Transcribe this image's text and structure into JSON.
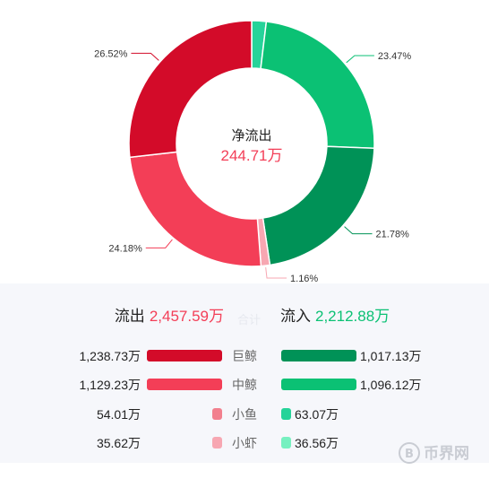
{
  "chart_data": {
    "type": "pie",
    "center_title": "净流出",
    "center_value": "244.71万",
    "slices": [
      {
        "label": "",
        "percent": 1.89,
        "color": "#26d399"
      },
      {
        "label": "23.47%",
        "percent": 23.47,
        "color": "#0bc174"
      },
      {
        "label": "21.78%",
        "percent": 21.78,
        "color": "#009257"
      },
      {
        "label": "1.16%",
        "percent": 1.16,
        "color": "#f7a7b2"
      },
      {
        "label": "24.18%",
        "percent": 24.18,
        "color": "#f33e57"
      },
      {
        "label": "26.52%",
        "percent": 26.52,
        "color": "#d30b29"
      }
    ]
  },
  "summary": {
    "outflow_label": "流出",
    "outflow_value": "2,457.59万",
    "inflow_label": "流入",
    "inflow_value": "2,212.88万",
    "middle_ghost": "合计"
  },
  "rows": [
    {
      "category": "巨鲸",
      "outflow": "1,238.73万",
      "inflow": "1,017.13万",
      "out_color": "#d30b29",
      "in_color": "#009257",
      "out_fraction": 1.0,
      "in_fraction": 1.0
    },
    {
      "category": "中鲸",
      "outflow": "1,129.23万",
      "inflow": "1,096.12万",
      "out_color": "#f33e57",
      "in_color": "#0bc174",
      "out_fraction": 1.0,
      "in_fraction": 1.0
    },
    {
      "category": "小鱼",
      "outflow": "54.01万",
      "inflow": "63.07万",
      "out_color": "#f2808e",
      "in_color": "#26d399",
      "out_fraction": 0.0,
      "in_fraction": 0.0
    },
    {
      "category": "小虾",
      "outflow": "35.62万",
      "inflow": "36.56万",
      "out_color": "#f7a7b2",
      "in_color": "#77f0c0",
      "out_fraction": 0.0,
      "in_fraction": 0.0
    }
  ],
  "watermark": {
    "text": "币界网"
  },
  "colors": {
    "outflow_text": "#f33e57",
    "inflow_text": "#0bc174",
    "center_value": "#f33e57"
  }
}
